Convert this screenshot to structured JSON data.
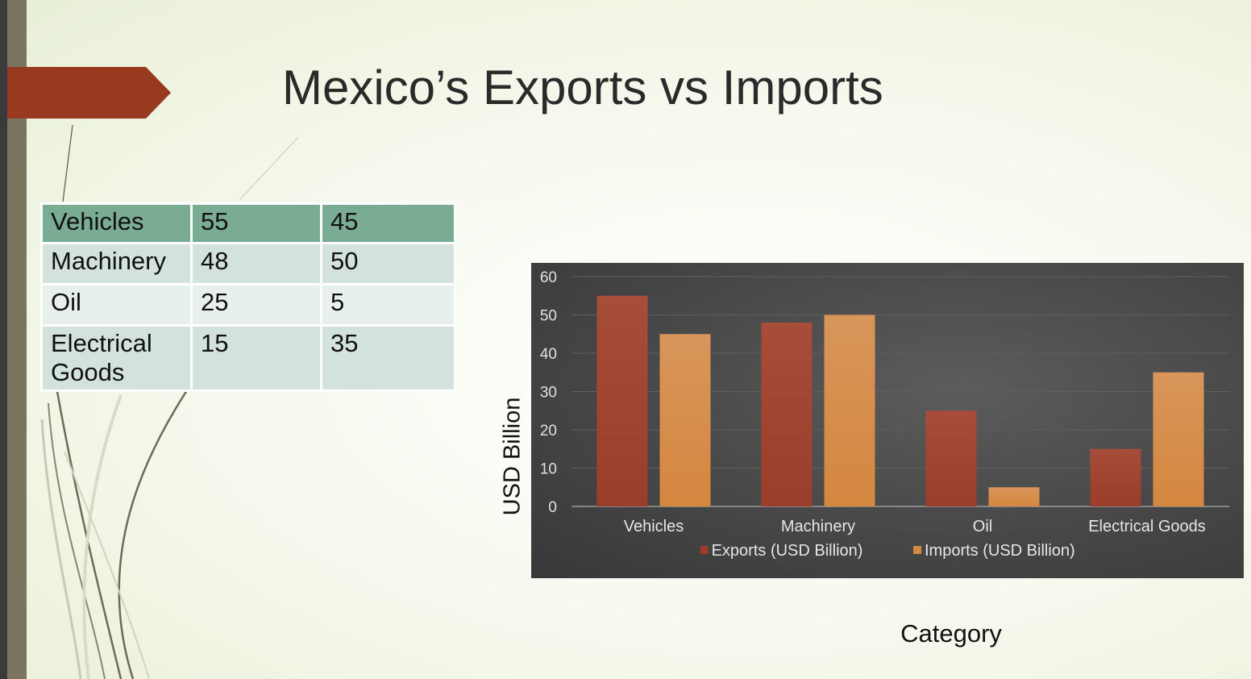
{
  "slide": {
    "title": "Mexico’s Exports vs Imports"
  },
  "table": {
    "rows": [
      [
        "Vehicles",
        "55",
        "45"
      ],
      [
        "Machinery",
        "48",
        "50"
      ],
      [
        "Oil",
        "25",
        "5"
      ],
      [
        "Electrical Goods",
        "15",
        "35"
      ]
    ]
  },
  "chart_data": {
    "type": "bar",
    "categories": [
      "Vehicles",
      "Machinery",
      "Oil",
      "Electrical Goods"
    ],
    "series": [
      {
        "name": "Exports (USD Billion)",
        "values": [
          55,
          48,
          25,
          15
        ],
        "color": "#9a3d2a"
      },
      {
        "name": "Imports (USD Billion)",
        "values": [
          45,
          50,
          5,
          35
        ],
        "color": "#d4873f"
      }
    ],
    "xlabel": "Category",
    "ylabel": "USD Billion",
    "ylim": [
      0,
      60
    ],
    "yticks": [
      0,
      10,
      20,
      30,
      40,
      50,
      60
    ],
    "grid": true,
    "legend_position": "bottom"
  },
  "colors": {
    "accent": "#9a3d2a",
    "table_header": "#7aab93",
    "chart_background": "#474747"
  }
}
